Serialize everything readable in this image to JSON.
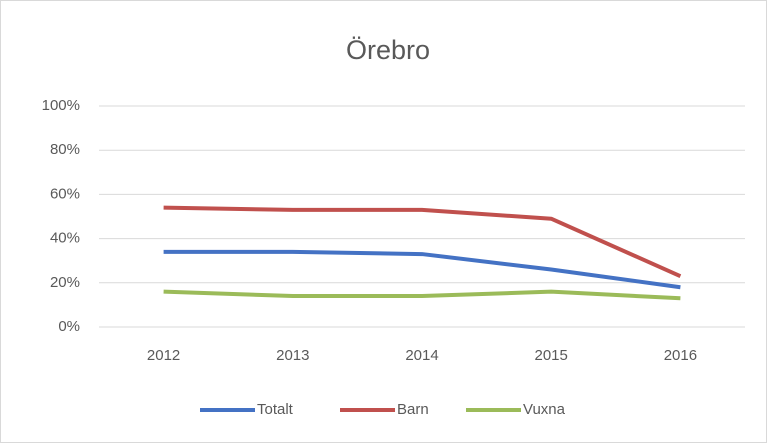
{
  "chart_data": {
    "type": "line",
    "title": "Örebro",
    "categories": [
      "2012",
      "2013",
      "2014",
      "2015",
      "2016"
    ],
    "series": [
      {
        "name": "Totalt",
        "color": "#4472c4",
        "values": [
          34,
          34,
          33,
          26,
          18
        ]
      },
      {
        "name": "Barn",
        "color": "#c0504d",
        "values": [
          54,
          53,
          53,
          49,
          23
        ]
      },
      {
        "name": "Vuxna",
        "color": "#9bbb59",
        "values": [
          16,
          14,
          14,
          16,
          13
        ]
      }
    ],
    "ylim": [
      0,
      100
    ],
    "yticks": [
      {
        "value": 0,
        "label": "0%"
      },
      {
        "value": 20,
        "label": "20%"
      },
      {
        "value": 40,
        "label": "40%"
      },
      {
        "value": 60,
        "label": "60%"
      },
      {
        "value": 80,
        "label": "80%"
      },
      {
        "value": 100,
        "label": "100%"
      }
    ],
    "grid": true,
    "legend": "bottom"
  }
}
